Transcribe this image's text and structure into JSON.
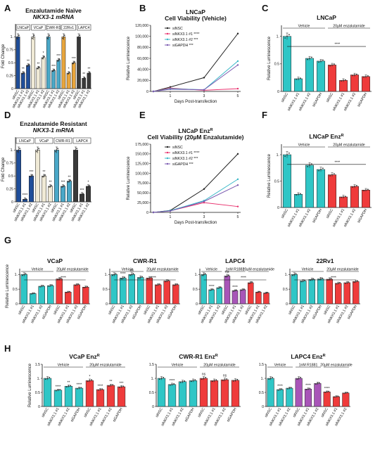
{
  "panels": [
    "A",
    "B",
    "C",
    "D",
    "E",
    "F",
    "G",
    "H"
  ],
  "chart_data": [
    {
      "id": "A",
      "type": "bar",
      "title": "Enzalutamide Naïve",
      "subtitle": "NKX3-1 mRNA",
      "ylabel": "Fold Change",
      "ylim": [
        0,
        1.25
      ],
      "yticks": [
        0,
        0.25,
        0.5,
        0.75,
        1.0
      ],
      "group_labels": [
        "LNCaP",
        "VCaP",
        "CWR-R1",
        "22Rv1",
        "LAPC4"
      ],
      "xticks": [
        "siNSC",
        "siNKX3.1 #1",
        "siNKX3.1 #2",
        "siNSC",
        "siNKX3.1 #1",
        "siNKX3.1 #2",
        "siNSC",
        "siNKX3.1 #1",
        "siNKX3.1 #2",
        "siNSC",
        "siNKX3.1 #1",
        "siNKX3.1 #2",
        "siNSC",
        "siNKX3.1 #1",
        "siNKX3.1 #2"
      ],
      "values": [
        1.0,
        0.3,
        0.45,
        1.0,
        0.4,
        0.6,
        1.0,
        0.35,
        0.55,
        1.0,
        0.3,
        0.5,
        1.0,
        0.2,
        0.3
      ],
      "colors": [
        "#1f4e9a",
        "#1f4e9a",
        "#1f4e9a",
        "#f0ead6",
        "#f0ead6",
        "#f0ead6",
        "#4aa8c8",
        "#4aa8c8",
        "#4aa8c8",
        "#e8a53c",
        "#e8a53c",
        "#e8a53c",
        "#3a3a3a",
        "#3a3a3a",
        "#3a3a3a"
      ],
      "stars": [
        "",
        "**",
        "**",
        "",
        "**",
        "*",
        "",
        "***",
        "***",
        "",
        "*",
        "***",
        "",
        "**",
        "**"
      ]
    },
    {
      "id": "B",
      "type": "line",
      "title": "LNCaP",
      "subtitle": "Cell Viability (Vehicle)",
      "xlabel": "Days Post-transfection",
      "ylabel": "Relative Luminescence",
      "x": [
        0,
        1,
        3,
        5
      ],
      "xticks": [
        1,
        3,
        5
      ],
      "ylim": [
        0,
        120000
      ],
      "yticks": [
        "0",
        "20,000",
        "40,000",
        "60,000",
        "80,000",
        "100,000",
        "120,000"
      ],
      "series": [
        {
          "name": "siNSC",
          "stars": "",
          "color": "#222222",
          "values": [
            0,
            8000,
            25000,
            105000
          ]
        },
        {
          "name": "siNKX3.1 #1",
          "stars": "****",
          "color": "#e8326e",
          "values": [
            0,
            6000,
            2000,
            5000
          ]
        },
        {
          "name": "siNKX3.1 #2",
          "stars": "***",
          "color": "#3bb8c8",
          "values": [
            0,
            5000,
            3000,
            55000
          ]
        },
        {
          "name": "siGAPDH",
          "stars": "***",
          "color": "#7a5ab0",
          "values": [
            0,
            4000,
            3000,
            48000
          ]
        }
      ]
    },
    {
      "id": "C",
      "type": "bar",
      "title": "LNCaP",
      "ylabel": "Relative Luminescence",
      "ylim": [
        0,
        1.2
      ],
      "yticks": [
        0,
        0.5,
        1.0
      ],
      "group_labels": [
        "Vehicle",
        "20µM enzalutamide"
      ],
      "sig": "****",
      "xticks": [
        "siNSC",
        "siNKX3.1 #1",
        "siNKX3.1 #2",
        "siGAPDH",
        "siNSC",
        "siNKX3.1 #1",
        "siNKX3.1 #2",
        "siGAPDH"
      ],
      "values": [
        1.0,
        0.23,
        0.6,
        0.55,
        0.48,
        0.2,
        0.3,
        0.27
      ],
      "colors": [
        "#2fc6c6",
        "#2fc6c6",
        "#2fc6c6",
        "#2fc6c6",
        "#ef3b3b",
        "#ef3b3b",
        "#ef3b3b",
        "#ef3b3b"
      ]
    },
    {
      "id": "D",
      "type": "bar",
      "title": "Enzalutamide Resistant",
      "subtitle": "NKX3-1 mRNA",
      "ylabel": "Fold Change",
      "ylim": [
        0,
        1.25
      ],
      "yticks": [
        0,
        0.25,
        0.5,
        0.75,
        1.0
      ],
      "group_labels": [
        "LNCaP",
        "VCaP",
        "CWR-R1",
        "LAPC4"
      ],
      "xticks": [
        "siNSC",
        "siNKX3.1 #1",
        "siNKX3.1 #2",
        "siNSC",
        "siNKX3.1 #1",
        "siNKX3.1 #2",
        "siNSC",
        "siNKX3.1 #1",
        "siNKX3.1 #2",
        "siNSC",
        "siNKX3.1 #1",
        "siNKX3.1 #2"
      ],
      "values": [
        1.0,
        0.05,
        0.5,
        1.0,
        0.5,
        0.3,
        1.0,
        0.3,
        0.4,
        1.0,
        0.15,
        0.3
      ],
      "colors": [
        "#1f4e9a",
        "#1f4e9a",
        "#1f4e9a",
        "#f0ead6",
        "#f0ead6",
        "#f0ead6",
        "#4aa8c8",
        "#4aa8c8",
        "#4aa8c8",
        "#3a3a3a",
        "#3a3a3a",
        "#3a3a3a"
      ],
      "stars": [
        "",
        "****",
        "***",
        "",
        "**",
        "**",
        "",
        "***",
        "**",
        "",
        "***",
        "*"
      ]
    },
    {
      "id": "E",
      "type": "line",
      "title": "LNCaP Enz",
      "title_sup": "R",
      "subtitle": "Cell Viability (20µM Enzalutamide)",
      "xlabel": "Days Post-transfection",
      "ylabel": "Relative Luminescence",
      "x": [
        0,
        1,
        3,
        5
      ],
      "xticks": [
        1,
        3,
        5
      ],
      "ylim": [
        0,
        175000
      ],
      "yticks": [
        "0",
        "25,000",
        "50,000",
        "75,000",
        "100,000",
        "125,000",
        "150,000",
        "175,000"
      ],
      "series": [
        {
          "name": "siNSC",
          "stars": "",
          "color": "#222222",
          "values": [
            0,
            5000,
            60000,
            150000
          ]
        },
        {
          "name": "siNKX3.1 #1",
          "stars": "****",
          "color": "#e8326e",
          "values": [
            0,
            4000,
            25000,
            15000
          ]
        },
        {
          "name": "siNKX3.1 #2",
          "stars": "***",
          "color": "#3bb8c8",
          "values": [
            0,
            4500,
            30000,
            85000
          ]
        },
        {
          "name": "siGAPDH",
          "stars": "***",
          "color": "#7a5ab0",
          "values": [
            0,
            3500,
            28000,
            70000
          ]
        }
      ]
    },
    {
      "id": "F",
      "type": "bar",
      "title": "LNCaP Enz",
      "title_sup": "R",
      "ylabel": "Relative Luminescence",
      "ylim": [
        0,
        1.2
      ],
      "yticks": [
        0,
        0.5,
        1.0
      ],
      "group_labels": [
        "Vehicle",
        "20µM enzalutamide"
      ],
      "sig": "****",
      "xticks": [
        "siNSC",
        "siNKX3.1 #1",
        "siNKX3.1 #2",
        "siGAPDH",
        "siNSC",
        "siNKX3.1 #1",
        "siNKX3.1 #2",
        "siGAPDH"
      ],
      "values": [
        1.0,
        0.25,
        0.8,
        0.72,
        0.62,
        0.2,
        0.4,
        0.33
      ],
      "colors": [
        "#2fc6c6",
        "#2fc6c6",
        "#2fc6c6",
        "#2fc6c6",
        "#ef3b3b",
        "#ef3b3b",
        "#ef3b3b",
        "#ef3b3b"
      ]
    },
    {
      "id": "G1",
      "type": "bar",
      "title": "VCaP",
      "ylabel": "Relative Luminescence",
      "ylim": [
        0,
        1.2
      ],
      "yticks": [
        0,
        0.5,
        1.0
      ],
      "group_labels": [
        "Vehicle",
        "20µM enzalutamide"
      ],
      "sig": "****",
      "xticks": [
        "siNSC",
        "siNKX3.1 #1",
        "siNKX3.1 #2",
        "siGAPDH",
        "siNSC",
        "siNKX3.1 #1",
        "siNKX3.1 #2",
        "siGAPDH"
      ],
      "values": [
        1.0,
        0.35,
        0.6,
        0.62,
        0.85,
        0.4,
        0.65,
        0.57
      ],
      "colors": [
        "#2fc6c6",
        "#2fc6c6",
        "#2fc6c6",
        "#2fc6c6",
        "#ef3b3b",
        "#ef3b3b",
        "#ef3b3b",
        "#ef3b3b"
      ]
    },
    {
      "id": "G2",
      "type": "bar",
      "title": "CWR-R1",
      "ylim": [
        0,
        1.2
      ],
      "yticks": [
        0,
        0.5,
        1.0
      ],
      "group_labels": [
        "Vehicle",
        "20µM enzalutamide"
      ],
      "sig": "****",
      "xticks": [
        "siNSC",
        "siNKX3.1 #1",
        "siNKX3.1 #2",
        "siGAPDH",
        "siNSC",
        "siNKX3.1 #1",
        "siNKX3.1 #2",
        "siGAPDH"
      ],
      "values": [
        1.0,
        0.88,
        1.0,
        0.9,
        0.88,
        0.65,
        0.78,
        0.65
      ],
      "colors": [
        "#2fc6c6",
        "#2fc6c6",
        "#2fc6c6",
        "#2fc6c6",
        "#ef3b3b",
        "#ef3b3b",
        "#ef3b3b",
        "#ef3b3b"
      ],
      "stars": [
        "",
        "****",
        "ns",
        "",
        "",
        "",
        "",
        ""
      ]
    },
    {
      "id": "G3",
      "type": "bar",
      "title": "LAPC4",
      "ylim": [
        0,
        1.2
      ],
      "yticks": [
        0,
        0.5,
        1.0
      ],
      "group_labels": [
        "Vehicle",
        "1nM R1881",
        "20µM enzalutamide"
      ],
      "sig": "****",
      "xticks": [
        "siNSC",
        "siNKX3.1 #1",
        "siNKX3.1 #2",
        "siNSC",
        "siNKX3.1 #1",
        "siNKX3.1 #2",
        "siNSC",
        "siNKX3.1 #1",
        "siNKX3.1 #2"
      ],
      "values": [
        1.0,
        0.48,
        0.55,
        0.95,
        0.45,
        0.48,
        0.72,
        0.4,
        0.37
      ],
      "colors": [
        "#2fc6c6",
        "#2fc6c6",
        "#2fc6c6",
        "#a855b8",
        "#a855b8",
        "#a855b8",
        "#ef3b3b",
        "#ef3b3b",
        "#ef3b3b"
      ],
      "stars": [
        "",
        "****",
        "",
        "ns",
        "****",
        "",
        "",
        "",
        ""
      ]
    },
    {
      "id": "G4",
      "type": "bar",
      "title": "22Rv1",
      "ylim": [
        0,
        1.2
      ],
      "yticks": [
        0,
        0.5,
        1.0
      ],
      "group_labels": [
        "Vehicle",
        "20µM enzalutamide"
      ],
      "sig": "****",
      "xticks": [
        "siNSC",
        "siNKX3.1 #1",
        "siNKX3.1 #2",
        "siGAPDH",
        "siNSC",
        "siNKX3.1 #1",
        "siNKX3.1 #2",
        "siGAPDH"
      ],
      "values": [
        1.0,
        0.78,
        0.83,
        0.85,
        0.84,
        0.7,
        0.72,
        0.76
      ],
      "colors": [
        "#2fc6c6",
        "#2fc6c6",
        "#2fc6c6",
        "#2fc6c6",
        "#ef3b3b",
        "#ef3b3b",
        "#ef3b3b",
        "#ef3b3b"
      ]
    },
    {
      "id": "H1",
      "type": "bar",
      "title": "VCaP Enz",
      "title_sup": "R",
      "ylabel": "Relative Luminescence",
      "ylim": [
        0,
        1.5
      ],
      "yticks": [
        0,
        0.5,
        1.0,
        1.5
      ],
      "group_labels": [
        "Vehicle",
        "20µM enzalutamide"
      ],
      "xticks": [
        "siNSC",
        "siNKX3.1 #1",
        "siNKX3.1 #2",
        "siGAPDH",
        "siNSC",
        "siNKX3.1 #1",
        "siNKX3.1 #2",
        "siGAPDH"
      ],
      "values": [
        1.0,
        0.58,
        0.72,
        0.65,
        0.92,
        0.6,
        0.75,
        0.7
      ],
      "colors": [
        "#2fc6c6",
        "#2fc6c6",
        "#2fc6c6",
        "#2fc6c6",
        "#ef3b3b",
        "#ef3b3b",
        "#ef3b3b",
        "#ef3b3b"
      ],
      "stars": [
        "",
        "****",
        "**",
        "****",
        "*",
        "****",
        "**",
        "***"
      ]
    },
    {
      "id": "H2",
      "type": "bar",
      "title": "CWR-R1 Enz",
      "title_sup": "R",
      "ylim": [
        0,
        1.5
      ],
      "yticks": [
        0,
        0.5,
        1.0,
        1.5
      ],
      "group_labels": [
        "Vehicle",
        "20µM enzalutamide"
      ],
      "xticks": [
        "siNSC",
        "siNKX3.1 #1",
        "siNKX3.1 #2",
        "siGAPDH",
        "siNSC",
        "siNKX3.1 #1",
        "siNKX3.1 #2",
        "siGAPDH"
      ],
      "values": [
        1.0,
        0.78,
        0.88,
        0.92,
        1.0,
        0.92,
        0.95,
        0.93
      ],
      "colors": [
        "#2fc6c6",
        "#2fc6c6",
        "#2fc6c6",
        "#2fc6c6",
        "#ef3b3b",
        "#ef3b3b",
        "#ef3b3b",
        "#ef3b3b"
      ],
      "stars": [
        "",
        "****",
        "",
        "",
        "ns",
        "",
        "ns",
        ""
      ]
    },
    {
      "id": "H3",
      "type": "bar",
      "title": "LAPC4 Enz",
      "title_sup": "R",
      "ylim": [
        0,
        1.5
      ],
      "yticks": [
        0,
        0.5,
        1.0,
        1.5
      ],
      "group_labels": [
        "Vehicle",
        "1nM R1881",
        "20µM enzalutamide"
      ],
      "xticks": [
        "siNSC",
        "siNKX3.1 #1",
        "siNKX3.1 #2",
        "siNSC",
        "siNKX3.1 #1",
        "siNKX3.1 #2",
        "siNSC",
        "siNKX3.1 #1",
        "siNKX3.1 #2"
      ],
      "values": [
        1.0,
        0.6,
        0.65,
        1.0,
        0.62,
        0.82,
        0.52,
        0.35,
        0.48
      ],
      "colors": [
        "#2fc6c6",
        "#2fc6c6",
        "#2fc6c6",
        "#a855b8",
        "#a855b8",
        "#a855b8",
        "#ef3b3b",
        "#ef3b3b",
        "#ef3b3b"
      ],
      "stars": [
        "",
        "****",
        "",
        "",
        "****",
        "",
        "****",
        "",
        ""
      ]
    }
  ]
}
